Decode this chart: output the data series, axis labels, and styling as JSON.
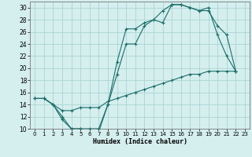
{
  "xlabel": "Humidex (Indice chaleur)",
  "background_color": "#d5eeee",
  "grid_color": "#aad4d4",
  "line_color": "#1a6e6a",
  "xlim": [
    -0.5,
    23.5
  ],
  "ylim": [
    10,
    31
  ],
  "xticks": [
    0,
    1,
    2,
    3,
    4,
    5,
    6,
    7,
    8,
    9,
    10,
    11,
    12,
    13,
    14,
    15,
    16,
    17,
    18,
    19,
    20,
    21,
    22,
    23
  ],
  "yticks": [
    10,
    12,
    14,
    16,
    18,
    20,
    22,
    24,
    26,
    28,
    30
  ],
  "curve1_x": [
    0,
    1,
    2,
    3,
    4,
    5,
    6,
    7,
    8,
    9,
    10,
    11,
    12,
    13,
    14,
    15,
    16,
    17,
    18,
    19,
    20,
    21,
    22
  ],
  "curve1_y": [
    15,
    15,
    14,
    12,
    10,
    10,
    10,
    10,
    14,
    21,
    26.5,
    26.5,
    27.5,
    28,
    27.5,
    30.5,
    30.5,
    30,
    29.5,
    30,
    25.5,
    22,
    19.5
  ],
  "curve2_x": [
    0,
    1,
    2,
    3,
    4,
    5,
    6,
    7,
    8,
    9,
    10,
    11,
    12,
    13,
    14,
    15,
    16,
    17,
    18,
    19,
    20,
    21,
    22
  ],
  "curve2_y": [
    15,
    15,
    14,
    11.5,
    10,
    10,
    9.5,
    9.5,
    14,
    19,
    24,
    24,
    27,
    28,
    29.5,
    30.5,
    30.5,
    30,
    29.5,
    29.5,
    27,
    25.5,
    19.5
  ],
  "curve3_x": [
    0,
    1,
    2,
    3,
    4,
    5,
    6,
    7,
    8,
    9,
    10,
    11,
    12,
    13,
    14,
    15,
    16,
    17,
    18,
    19,
    20,
    21,
    22
  ],
  "curve3_y": [
    15,
    15,
    14,
    13,
    13,
    13.5,
    13.5,
    13.5,
    14.5,
    15,
    15.5,
    16,
    16.5,
    17,
    17.5,
    18,
    18.5,
    19,
    19,
    19.5,
    19.5,
    19.5,
    19.5
  ]
}
